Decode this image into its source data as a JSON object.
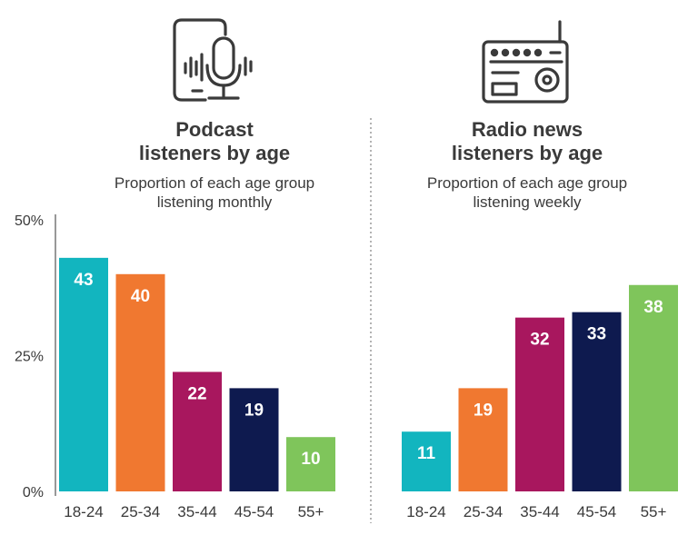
{
  "colors": {
    "age_18_24": "#12b5bf",
    "age_25_34": "#f07830",
    "age_35_44": "#a8175e",
    "age_45_54": "#0e1a4f",
    "age_55_plus": "#7fc55b",
    "text": "#3a3a3a",
    "axis": "#555555",
    "divider": "#9a9a9a"
  },
  "icons": {
    "left": "podcast-phone-microphone-icon",
    "right": "radio-icon"
  },
  "chart_data": [
    {
      "type": "bar",
      "title": "Podcast\nlisteners by age",
      "subtitle": "Proportion of each age group\nlistening monthly",
      "categories": [
        "18-24",
        "25-34",
        "35-44",
        "45-54",
        "55+"
      ],
      "values": [
        43,
        40,
        22,
        19,
        10
      ],
      "value_labels": [
        "43",
        "40",
        "22",
        "19",
        "10"
      ],
      "yticks": [
        "50%",
        "25%",
        "0%"
      ],
      "ylim": [
        0,
        50
      ],
      "grid": false
    },
    {
      "type": "bar",
      "title": "Radio news\nlisteners by age",
      "subtitle": "Proportion of each age group\nlistening weekly",
      "categories": [
        "18-24",
        "25-34",
        "35-44",
        "45-54",
        "55+"
      ],
      "values": [
        11,
        19,
        32,
        33,
        38
      ],
      "value_labels": [
        "11",
        "19",
        "32",
        "33",
        "38"
      ],
      "ylim": [
        0,
        50
      ],
      "grid": false
    }
  ]
}
